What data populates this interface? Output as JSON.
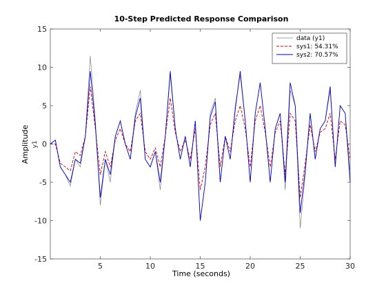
{
  "chart_data": {
    "type": "line",
    "title": "10-Step Predicted Response Comparison",
    "xlabel": "Time (seconds)",
    "ylabel": "Amplitude",
    "ylabel_sub": "y1",
    "xlim": [
      0,
      30
    ],
    "ylim": [
      -15,
      15
    ],
    "xticks": [
      5,
      10,
      15,
      20,
      25,
      30
    ],
    "yticks": [
      -15,
      -10,
      -5,
      0,
      5,
      10,
      15
    ],
    "grid": false,
    "legend_position": "top-right",
    "series": [
      {
        "name": "data (y1)",
        "color": "#808080",
        "style": "solid",
        "x": [
          0,
          0.5,
          1,
          1.5,
          2,
          2.5,
          3,
          3.5,
          4,
          4.5,
          5,
          5.5,
          6,
          6.5,
          7,
          7.5,
          8,
          8.5,
          9,
          9.5,
          10,
          10.5,
          11,
          11.5,
          12,
          12.5,
          13,
          13.5,
          14,
          14.5,
          15,
          15.5,
          16,
          16.5,
          17,
          17.5,
          18,
          18.5,
          19,
          19.5,
          20,
          20.5,
          21,
          21.5,
          22,
          22.5,
          23,
          23.5,
          24,
          24.5,
          25,
          25.5,
          26,
          26.5,
          27,
          27.5,
          28,
          28.5,
          29,
          29.5,
          30
        ],
        "values": [
          0,
          0.5,
          -3,
          -4,
          -5.5,
          -2,
          -3,
          1,
          11.5,
          3,
          -8,
          -2,
          -5,
          1,
          3,
          0,
          -2,
          4,
          7,
          -2,
          -3,
          -1,
          -6,
          1,
          9,
          2,
          -2,
          1,
          -3,
          3,
          -10,
          -5,
          4,
          6,
          -5,
          1,
          -2,
          5,
          9,
          3,
          -5,
          4,
          8,
          2,
          -5,
          2,
          4,
          -6,
          7,
          5,
          -11,
          -4,
          4,
          -2,
          2,
          3,
          7,
          -3,
          5,
          4,
          -4
        ]
      },
      {
        "name": "sys1: 54.31%",
        "color": "#cc0000",
        "style": "dashed",
        "x": [
          0,
          0.5,
          1,
          1.5,
          2,
          2.5,
          3,
          3.5,
          4,
          4.5,
          5,
          5.5,
          6,
          6.5,
          7,
          7.5,
          8,
          8.5,
          9,
          9.5,
          10,
          10.5,
          11,
          11.5,
          12,
          12.5,
          13,
          13.5,
          14,
          14.5,
          15,
          15.5,
          16,
          16.5,
          17,
          17.5,
          18,
          18.5,
          19,
          19.5,
          20,
          20.5,
          21,
          21.5,
          22,
          22.5,
          23,
          23.5,
          24,
          24.5,
          25,
          25.5,
          26,
          26.5,
          27,
          27.5,
          28,
          28.5,
          29,
          29.5,
          30
        ],
        "values": [
          0,
          0,
          -2.5,
          -3,
          -3.5,
          -1,
          -1.5,
          1,
          7.5,
          2,
          -4,
          -1,
          -3,
          0.5,
          2,
          0,
          -1,
          3,
          4,
          -1,
          -2,
          -0.5,
          -3,
          1,
          6,
          1.5,
          -1,
          0.5,
          -2,
          2,
          -6,
          -3,
          2.5,
          4,
          -3,
          1,
          -1,
          3,
          5,
          2,
          -3,
          3,
          5,
          1.5,
          -3,
          1.5,
          3,
          -4,
          4,
          3,
          -7,
          -2.5,
          2.5,
          -1,
          1.5,
          2,
          4,
          -2,
          3,
          2.5,
          -2
        ]
      },
      {
        "name": "sys2: 70.57%",
        "color": "#0000cc",
        "style": "solid",
        "x": [
          0,
          0.5,
          1,
          1.5,
          2,
          2.5,
          3,
          3.5,
          4,
          4.5,
          5,
          5.5,
          6,
          6.5,
          7,
          7.5,
          8,
          8.5,
          9,
          9.5,
          10,
          10.5,
          11,
          11.5,
          12,
          12.5,
          13,
          13.5,
          14,
          14.5,
          15,
          15.5,
          16,
          16.5,
          17,
          17.5,
          18,
          18.5,
          19,
          19.5,
          20,
          20.5,
          21,
          21.5,
          22,
          22.5,
          23,
          23.5,
          24,
          24.5,
          25,
          25.5,
          26,
          26.5,
          27,
          27.5,
          28,
          28.5,
          29,
          29.5,
          30
        ],
        "values": [
          0,
          0.5,
          -3,
          -4,
          -5,
          -2,
          -2.5,
          1,
          9.5,
          2.5,
          -7,
          -2,
          -4,
          1,
          3,
          0,
          -2,
          3.5,
          6,
          -2,
          -3,
          -1,
          -5,
          1,
          9.5,
          2,
          -2,
          1,
          -3,
          3,
          -10,
          -5,
          3.5,
          5.5,
          -5,
          1,
          -2,
          4.5,
          9.5,
          3,
          -5,
          4,
          8,
          2,
          -5,
          2,
          4,
          -5,
          8,
          5,
          -9,
          -3.5,
          4,
          -2,
          2,
          3,
          7.5,
          -3,
          5,
          4,
          -5
        ]
      }
    ]
  }
}
